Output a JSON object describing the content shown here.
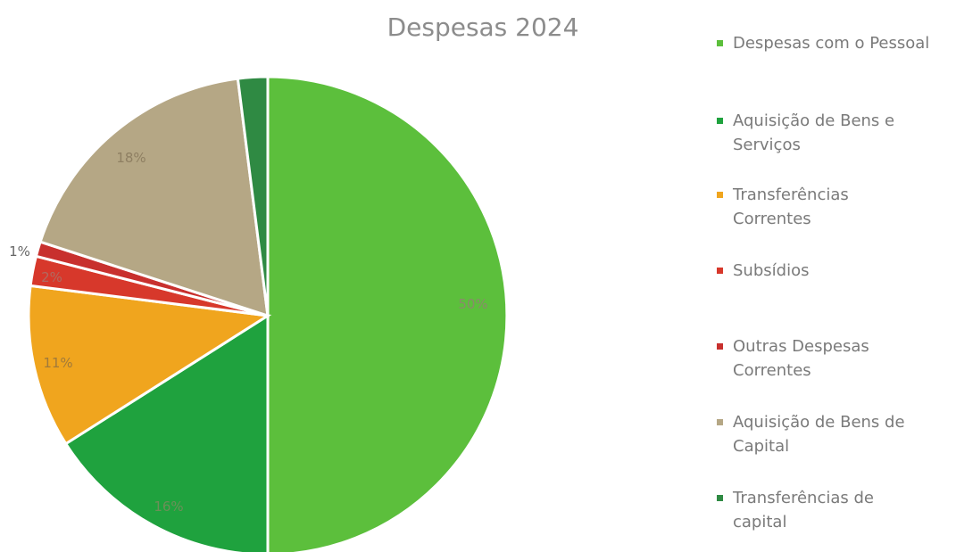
{
  "chart_data": {
    "type": "pie",
    "title": "Despesas 2024",
    "legend_position": "right",
    "slices": [
      {
        "name": "Despesas com o Pessoal",
        "value": 50,
        "label": "50%",
        "color": "#5cbf3c",
        "label_color": "#8a8a6a"
      },
      {
        "name": "Aquisição de Bens e Serviços",
        "value": 16,
        "label": "16%",
        "color": "#1fa23e",
        "label_color": "#6c8f58"
      },
      {
        "name": "Transferências Correntes",
        "value": 11,
        "label": "11%",
        "color": "#f0a51e",
        "label_color": "#a17a3a"
      },
      {
        "name": "Subsídios",
        "value": 2,
        "label": "2%",
        "color": "#d7382b",
        "label_color": "#b06a60"
      },
      {
        "name": "Outras Despesas Correntes",
        "value": 1,
        "label": "1%",
        "color": "#c8302e",
        "label_color": "#666666"
      },
      {
        "name": "Aquisição de Bens de Capital",
        "value": 18,
        "label": "18%",
        "color": "#b5a785",
        "label_color": "#8e7f62"
      },
      {
        "name": "Transferências de capital",
        "value": 2,
        "label": "",
        "color": "#2f8a43",
        "label_color": "#666666"
      }
    ],
    "legend_lines": [
      [
        "Despesas com o Pessoal"
      ],
      [
        "Aquisição de Bens e",
        "Serviços"
      ],
      [
        "Transferências",
        "Correntes"
      ],
      [
        "Subsídios"
      ],
      [
        "Outras Despesas",
        "Correntes"
      ],
      [
        "Aquisição de Bens de",
        "Capital"
      ],
      [
        "Transferências de",
        "capital"
      ]
    ]
  }
}
